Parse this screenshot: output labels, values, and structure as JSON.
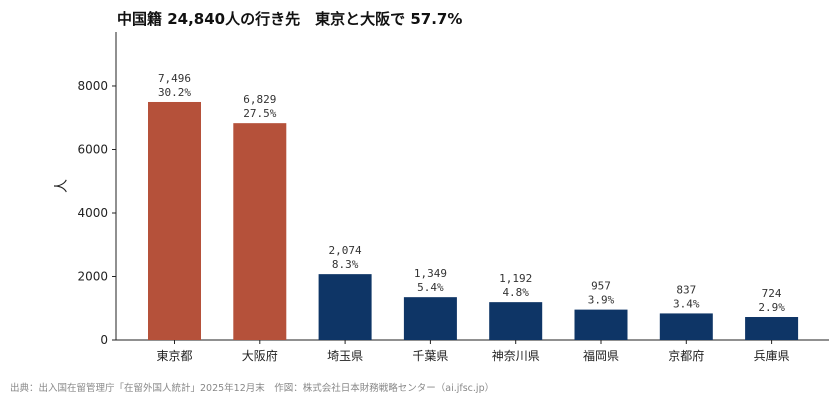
{
  "chart_data": {
    "type": "bar",
    "title": "中国籍 24,840人の行き先　東京と大阪で 57.7%",
    "ylabel": "人",
    "xlabel": "",
    "ylim": [
      0,
      9700
    ],
    "yticks": [
      0,
      2000,
      4000,
      6000,
      8000
    ],
    "categories": [
      "東京都",
      "大阪府",
      "埼玉県",
      "千葉県",
      "神奈川県",
      "福岡県",
      "京都府",
      "兵庫県"
    ],
    "values": [
      7496,
      6829,
      2074,
      1349,
      1192,
      957,
      837,
      724
    ],
    "value_labels": [
      "7,496",
      "6,829",
      "2,074",
      "1,349",
      "1,192",
      "957",
      "837",
      "724"
    ],
    "percent_labels": [
      "30.2%",
      "27.5%",
      "8.3%",
      "5.4%",
      "4.8%",
      "3.9%",
      "3.4%",
      "2.9%"
    ],
    "grid": false,
    "legend": "none"
  },
  "colors": {
    "highlight": "#b5513a",
    "base": "#0e3566",
    "axis": "#222222",
    "source_text": "#888888"
  },
  "source_note": "出典：出入国在留管理庁「在留外国人統計」2025年12月末　作図：株式会社日本財務戦略センター（ai.jfsc.jp）"
}
